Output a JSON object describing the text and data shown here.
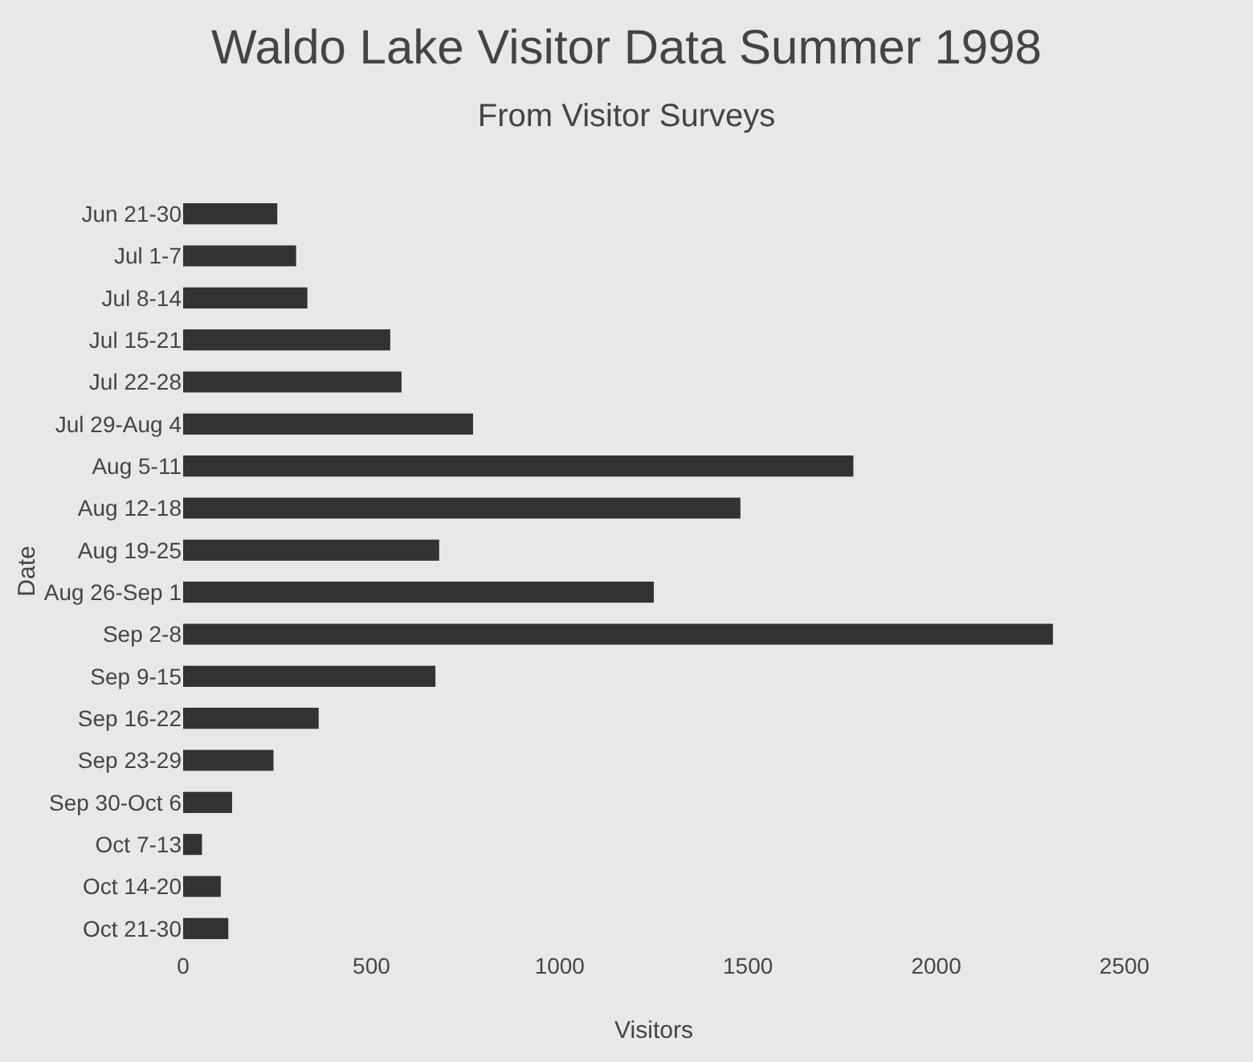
{
  "chart_data": {
    "type": "bar",
    "orientation": "horizontal",
    "title": "Waldo Lake Visitor Data Summer 1998",
    "subtitle": "From Visitor Surveys",
    "xlabel": "Visitors",
    "ylabel": "Date",
    "categories": [
      "Jun 21-30",
      "Jul 1-7",
      "Jul 8-14",
      "Jul 15-21",
      "Jul 22-28",
      "Jul 29-Aug 4",
      "Aug 5-11",
      "Aug 12-18",
      "Aug 19-25",
      "Aug 26-Sep 1",
      "Sep 2-8",
      "Sep 9-15",
      "Sep 16-22",
      "Sep 23-29",
      "Sep 30-Oct 6",
      "Oct 7-13",
      "Oct 14-20",
      "Oct 21-30"
    ],
    "values": [
      250,
      300,
      330,
      550,
      580,
      770,
      1780,
      1480,
      680,
      1250,
      2310,
      670,
      360,
      240,
      130,
      50,
      100,
      120
    ],
    "color": "#333333",
    "xlim": [
      0,
      2500
    ],
    "xticks": [
      0,
      500,
      1000,
      1500,
      2000,
      2500
    ],
    "grid": false
  }
}
